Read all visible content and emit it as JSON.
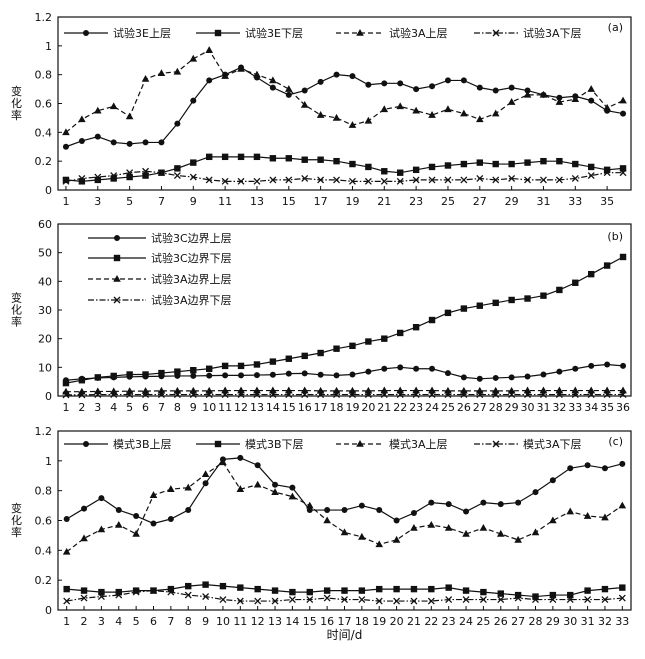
{
  "chart_data": [
    {
      "id": "a",
      "type": "line",
      "panel_label": "(a)",
      "ylabel": "变化率",
      "xlabel": "",
      "ylim": [
        0,
        1.2
      ],
      "yticks": [
        0,
        0.2,
        0.4,
        0.6,
        0.8,
        1,
        1.2
      ],
      "ytick_labels": [
        "0",
        "0.2",
        "0.4",
        "0.6",
        "0.8",
        "1",
        "1.2"
      ],
      "xlim": [
        0.5,
        36.5
      ],
      "xticks": [
        1,
        3,
        5,
        7,
        9,
        11,
        13,
        15,
        17,
        19,
        21,
        23,
        25,
        27,
        29,
        31,
        33,
        35
      ],
      "legend_position": "top-left-row",
      "series": [
        {
          "name": "试验3E上层",
          "marker": "circle",
          "dash": "solid",
          "values": [
            0.3,
            0.34,
            0.37,
            0.33,
            0.32,
            0.33,
            0.33,
            0.46,
            0.62,
            0.76,
            0.8,
            0.85,
            0.78,
            0.71,
            0.66,
            0.69,
            0.75,
            0.8,
            0.79,
            0.73,
            0.74,
            0.74,
            0.7,
            0.72,
            0.76,
            0.76,
            0.71,
            0.69,
            0.71,
            0.69,
            0.66,
            0.64,
            0.65,
            0.62,
            0.55,
            0.53
          ]
        },
        {
          "name": "试验3E下层",
          "marker": "square",
          "dash": "solid",
          "values": [
            0.07,
            0.06,
            0.07,
            0.08,
            0.09,
            0.1,
            0.12,
            0.15,
            0.19,
            0.23,
            0.23,
            0.23,
            0.23,
            0.22,
            0.22,
            0.21,
            0.21,
            0.2,
            0.18,
            0.16,
            0.13,
            0.12,
            0.14,
            0.16,
            0.17,
            0.18,
            0.19,
            0.18,
            0.18,
            0.19,
            0.2,
            0.2,
            0.18,
            0.16,
            0.14,
            0.15
          ]
        },
        {
          "name": "试验3A上层",
          "marker": "triangle",
          "dash": "dashed",
          "values": [
            0.4,
            0.49,
            0.55,
            0.58,
            0.51,
            0.77,
            0.81,
            0.82,
            0.91,
            0.97,
            0.79,
            0.84,
            0.8,
            0.76,
            0.7,
            0.59,
            0.52,
            0.5,
            0.45,
            0.48,
            0.56,
            0.58,
            0.55,
            0.52,
            0.56,
            0.53,
            0.49,
            0.53,
            0.61,
            0.66,
            0.66,
            0.61,
            0.63,
            0.7,
            0.57,
            0.62
          ]
        },
        {
          "name": "试验3A下层",
          "marker": "x",
          "dash": "dashdot",
          "values": [
            0.06,
            0.08,
            0.09,
            0.1,
            0.12,
            0.13,
            0.12,
            0.1,
            0.09,
            0.07,
            0.06,
            0.06,
            0.06,
            0.07,
            0.07,
            0.08,
            0.07,
            0.07,
            0.06,
            0.06,
            0.06,
            0.06,
            0.07,
            0.07,
            0.07,
            0.07,
            0.08,
            0.07,
            0.08,
            0.07,
            0.07,
            0.07,
            0.08,
            0.1,
            0.12,
            0.12
          ]
        }
      ]
    },
    {
      "id": "b",
      "type": "line",
      "panel_label": "(b)",
      "ylabel": "变化率",
      "xlabel": "",
      "ylim": [
        0,
        60
      ],
      "yticks": [
        0,
        10,
        20,
        30,
        40,
        50,
        60
      ],
      "ytick_labels": [
        "0",
        "10",
        "20",
        "30",
        "40",
        "50",
        "60"
      ],
      "xlim": [
        0.5,
        36.5
      ],
      "xticks": [
        1,
        2,
        3,
        4,
        5,
        6,
        7,
        8,
        9,
        10,
        11,
        12,
        13,
        14,
        15,
        16,
        17,
        18,
        19,
        20,
        21,
        22,
        23,
        24,
        25,
        26,
        27,
        28,
        29,
        30,
        31,
        32,
        33,
        34,
        35,
        36
      ],
      "legend_position": "top-left-column",
      "series": [
        {
          "name": "试验3C边界上层",
          "marker": "circle",
          "dash": "solid",
          "values": [
            5.5,
            6,
            6.3,
            6.5,
            6.7,
            6.8,
            6.9,
            7,
            7,
            7.1,
            7.2,
            7.2,
            7.3,
            7.4,
            7.8,
            7.9,
            7.4,
            7.2,
            7.5,
            8.5,
            9.5,
            10,
            9.5,
            9.5,
            8,
            6.5,
            6,
            6.3,
            6.5,
            6.8,
            7.5,
            8.5,
            9.5,
            10.5,
            11,
            10.5
          ]
        },
        {
          "name": "试验3C边界下层",
          "marker": "square",
          "dash": "solid",
          "values": [
            4.5,
            5.5,
            6.5,
            7,
            7.5,
            7.5,
            8,
            8.5,
            9,
            9.5,
            10.5,
            10.5,
            11,
            12,
            13,
            14,
            15,
            16.5,
            17.5,
            19,
            20,
            22,
            24,
            26.5,
            29,
            30.5,
            31.5,
            32.5,
            33.5,
            34,
            35,
            37,
            39.5,
            42.5,
            45.5,
            48.5
          ]
        },
        {
          "name": "试验3A边界上层",
          "marker": "triangle",
          "dash": "dashed",
          "values": [
            1.5,
            1.5,
            1.6,
            1.6,
            1.7,
            1.7,
            1.8,
            1.8,
            1.8,
            1.8,
            1.9,
            1.9,
            1.9,
            1.9,
            1.9,
            1.9,
            1.8,
            1.8,
            1.8,
            1.8,
            1.9,
            1.9,
            1.9,
            1.9,
            1.8,
            1.8,
            1.8,
            1.8,
            1.8,
            1.9,
            1.9,
            1.9,
            1.9,
            1.9,
            1.9,
            1.9
          ]
        },
        {
          "name": "试验3A边界下层",
          "marker": "x",
          "dash": "dashdot",
          "values": [
            0.4,
            0.4,
            0.5,
            0.5,
            0.5,
            0.5,
            0.5,
            0.5,
            0.5,
            0.5,
            0.5,
            0.5,
            0.5,
            0.5,
            0.5,
            0.5,
            0.5,
            0.5,
            0.5,
            0.5,
            0.5,
            0.5,
            0.5,
            0.5,
            0.5,
            0.5,
            0.5,
            0.5,
            0.5,
            0.5,
            0.5,
            0.5,
            0.5,
            0.5,
            0.5,
            0.5
          ]
        }
      ]
    },
    {
      "id": "c",
      "type": "line",
      "panel_label": "(c)",
      "ylabel": "变化率",
      "xlabel": "时间/d",
      "ylim": [
        0,
        1.2
      ],
      "yticks": [
        0,
        0.2,
        0.4,
        0.6,
        0.8,
        1,
        1.2
      ],
      "ytick_labels": [
        "0",
        "0.2",
        "0.4",
        "0.6",
        "0.8",
        "1",
        "1.2"
      ],
      "xlim": [
        0.5,
        33.5
      ],
      "xticks": [
        1,
        2,
        3,
        4,
        5,
        6,
        7,
        8,
        9,
        10,
        11,
        12,
        13,
        14,
        15,
        16,
        17,
        18,
        19,
        20,
        21,
        22,
        23,
        24,
        25,
        26,
        27,
        28,
        29,
        30,
        31,
        32,
        33
      ],
      "legend_position": "top-left-row",
      "series": [
        {
          "name": "模式3B上层",
          "marker": "circle",
          "dash": "solid",
          "values": [
            0.61,
            0.68,
            0.75,
            0.67,
            0.63,
            0.58,
            0.61,
            0.67,
            0.85,
            1.01,
            1.02,
            0.97,
            0.84,
            0.82,
            0.67,
            0.67,
            0.67,
            0.7,
            0.67,
            0.6,
            0.65,
            0.72,
            0.71,
            0.66,
            0.72,
            0.71,
            0.72,
            0.79,
            0.87,
            0.95,
            0.97,
            0.95,
            0.98
          ]
        },
        {
          "name": "模式3B下层",
          "marker": "square",
          "dash": "solid",
          "values": [
            0.14,
            0.13,
            0.12,
            0.12,
            0.13,
            0.13,
            0.14,
            0.16,
            0.17,
            0.16,
            0.15,
            0.14,
            0.13,
            0.12,
            0.12,
            0.13,
            0.13,
            0.13,
            0.14,
            0.14,
            0.14,
            0.14,
            0.15,
            0.13,
            0.12,
            0.11,
            0.1,
            0.09,
            0.1,
            0.1,
            0.13,
            0.14,
            0.15
          ]
        },
        {
          "name": "模式3A上层",
          "marker": "triangle",
          "dash": "dashed",
          "values": [
            0.39,
            0.48,
            0.54,
            0.57,
            0.51,
            0.77,
            0.81,
            0.82,
            0.91,
            0.99,
            0.81,
            0.84,
            0.79,
            0.76,
            0.7,
            0.6,
            0.52,
            0.49,
            0.44,
            0.47,
            0.55,
            0.57,
            0.55,
            0.51,
            0.55,
            0.51,
            0.47,
            0.52,
            0.6,
            0.66,
            0.63,
            0.62,
            0.7
          ]
        },
        {
          "name": "模式3A下层",
          "marker": "x",
          "dash": "dashdot",
          "values": [
            0.06,
            0.08,
            0.09,
            0.1,
            0.12,
            0.13,
            0.12,
            0.1,
            0.09,
            0.07,
            0.06,
            0.06,
            0.06,
            0.07,
            0.07,
            0.08,
            0.07,
            0.07,
            0.06,
            0.06,
            0.06,
            0.06,
            0.07,
            0.07,
            0.07,
            0.07,
            0.08,
            0.07,
            0.07,
            0.07,
            0.07,
            0.07,
            0.08
          ]
        }
      ]
    }
  ]
}
